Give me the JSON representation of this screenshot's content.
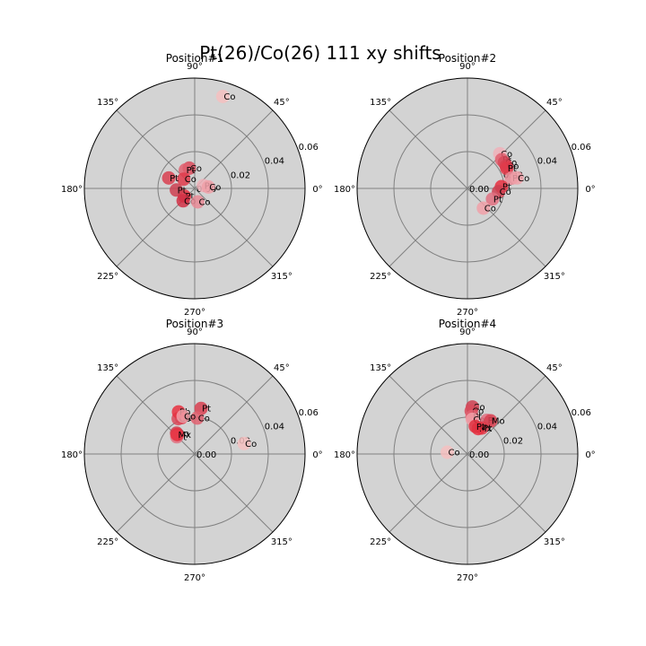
{
  "title": "Pt(26)/Co(26) 111 xy shifts",
  "chart_data": [
    {
      "type": "scatter",
      "projection": "polar",
      "title": "Position#1",
      "rlim": [
        0,
        0.06
      ],
      "r_ticks": [
        0.0,
        0.02,
        0.04,
        0.06
      ],
      "r_tick_labels": [
        "0.00",
        "0.02",
        "0.04",
        "0.06"
      ],
      "theta_ticks_deg": [
        0,
        45,
        90,
        135,
        180,
        225,
        270,
        315
      ],
      "theta_tick_labels": [
        "0°",
        "45°",
        "90°",
        "135°",
        "180°",
        "225°",
        "270°",
        "315°"
      ],
      "grid": true,
      "points": [
        {
          "label": "Co",
          "r": 0.0523,
          "theta_deg": 73,
          "color": "#f4c0c0"
        },
        {
          "label": "Co",
          "r": 0.0114,
          "theta_deg": 105,
          "color": "#d84a5a"
        },
        {
          "label": "Pt",
          "r": 0.0112,
          "theta_deg": 117,
          "color": "#e06070"
        },
        {
          "label": "Co",
          "r": 0.0078,
          "theta_deg": 140,
          "color": "#e03a4a"
        },
        {
          "label": "Pt",
          "r": 0.0152,
          "theta_deg": 158,
          "color": "#d84050"
        },
        {
          "label": "Pt",
          "r": 0.005,
          "theta_deg": 18,
          "color": "#f0b0b8"
        },
        {
          "label": "Co",
          "r": 0.0075,
          "theta_deg": 6,
          "color": "#f0a0a8"
        },
        {
          "label": "Pt",
          "r": 0.007,
          "theta_deg": 217,
          "color": "#e83040"
        },
        {
          "label": "Pt",
          "r": 0.01,
          "theta_deg": 185,
          "color": "#cc4050"
        },
        {
          "label": "Co",
          "r": 0.0092,
          "theta_deg": 227,
          "color": "#d03045"
        },
        {
          "label": "Co",
          "r": 0.0075,
          "theta_deg": 283,
          "color": "#e88a95"
        }
      ]
    },
    {
      "type": "scatter",
      "projection": "polar",
      "title": "Position#2",
      "rlim": [
        0,
        0.06
      ],
      "r_ticks": [
        0.0,
        0.02,
        0.04,
        0.06
      ],
      "r_tick_labels": [
        "0.00",
        "0.02",
        "0.04",
        "0.06"
      ],
      "theta_ticks_deg": [
        0,
        45,
        90,
        135,
        180,
        225,
        270,
        315
      ],
      "theta_tick_labels": [
        "0°",
        "45°",
        "90°",
        "135°",
        "180°",
        "225°",
        "270°",
        "315°"
      ],
      "grid": true,
      "points": [
        {
          "label": "Co",
          "r": 0.0258,
          "theta_deg": 47,
          "color": "#f0b0b8"
        },
        {
          "label": "Pt",
          "r": 0.0243,
          "theta_deg": 40,
          "color": "#e06070"
        },
        {
          "label": "Co",
          "r": 0.0245,
          "theta_deg": 35,
          "color": "#d84a5a"
        },
        {
          "label": "Co",
          "r": 0.0244,
          "theta_deg": 30,
          "color": "#d84050"
        },
        {
          "label": "Pt",
          "r": 0.024,
          "theta_deg": 27,
          "color": "#e03a4a"
        },
        {
          "label": "Pt",
          "r": 0.0245,
          "theta_deg": 13,
          "color": "#e88a95"
        },
        {
          "label": "Co",
          "r": 0.0275,
          "theta_deg": 12,
          "color": "#f0a0a8"
        },
        {
          "label": "Pt",
          "r": 0.0185,
          "theta_deg": 3,
          "color": "#e83040"
        },
        {
          "label": "Co",
          "r": 0.017,
          "theta_deg": 354,
          "color": "#cc4050"
        },
        {
          "label": "Pt",
          "r": 0.0148,
          "theta_deg": 337,
          "color": "#e07080"
        },
        {
          "label": "Co",
          "r": 0.0138,
          "theta_deg": 309,
          "color": "#f0a0a8"
        }
      ]
    },
    {
      "type": "scatter",
      "projection": "polar",
      "title": "Position#3",
      "rlim": [
        0,
        0.06
      ],
      "r_ticks": [
        0.0,
        0.02,
        0.04,
        0.06
      ],
      "r_tick_labels": [
        "0.00",
        "0.02",
        "0.04",
        "0.06"
      ],
      "theta_ticks_deg": [
        0,
        45,
        90,
        135,
        180,
        225,
        270,
        315
      ],
      "theta_tick_labels": [
        "0°",
        "45°",
        "90°",
        "135°",
        "180°",
        "225°",
        "270°",
        "315°"
      ],
      "grid": true,
      "points": [
        {
          "label": "Pt",
          "r": 0.025,
          "theta_deg": 82,
          "color": "#d84050"
        },
        {
          "label": "Co",
          "r": 0.0196,
          "theta_deg": 86,
          "color": "#e06070"
        },
        {
          "label": "Pt",
          "r": 0.021,
          "theta_deg": 110,
          "color": "#e03a4a"
        },
        {
          "label": "Co",
          "r": 0.0212,
          "theta_deg": 115,
          "color": "#d84a5a"
        },
        {
          "label": "Pb",
          "r": 0.0245,
          "theta_deg": 111,
          "color": "#e83040"
        },
        {
          "label": "Co",
          "r": 0.0215,
          "theta_deg": 107,
          "color": "#f0a0a8"
        },
        {
          "label": "Co",
          "r": 0.015,
          "theta_deg": 131,
          "color": "#cc4050"
        },
        {
          "label": "Pt",
          "r": 0.0135,
          "theta_deg": 136,
          "color": "#e07080"
        },
        {
          "label": "Mx",
          "r": 0.0142,
          "theta_deg": 132,
          "color": "#e83040"
        },
        {
          "label": "Co",
          "r": 0.0275,
          "theta_deg": 12,
          "color": "#f4c0c0"
        }
      ]
    },
    {
      "type": "scatter",
      "projection": "polar",
      "title": "Position#4",
      "rlim": [
        0,
        0.06
      ],
      "r_ticks": [
        0.0,
        0.02,
        0.04,
        0.06
      ],
      "r_tick_labels": [
        "0.00",
        "0.02",
        "0.04",
        "0.06"
      ],
      "theta_ticks_deg": [
        0,
        45,
        90,
        135,
        180,
        225,
        270,
        315
      ],
      "theta_tick_labels": [
        "0°",
        "45°",
        "90°",
        "135°",
        "180°",
        "225°",
        "270°",
        "315°"
      ],
      "grid": true,
      "points": [
        {
          "label": "Co",
          "r": 0.0257,
          "theta_deg": 84,
          "color": "#cc4050"
        },
        {
          "label": "Co",
          "r": 0.0235,
          "theta_deg": 85,
          "color": "#d84a5a"
        },
        {
          "label": "Pt",
          "r": 0.0205,
          "theta_deg": 83,
          "color": "#e06070"
        },
        {
          "label": "Co",
          "r": 0.019,
          "theta_deg": 82,
          "color": "#f0a0a8"
        },
        {
          "label": "Pt",
          "r": 0.0211,
          "theta_deg": 60,
          "color": "#e07080"
        },
        {
          "label": "Mo",
          "r": 0.022,
          "theta_deg": 55,
          "color": "#d84050"
        },
        {
          "label": "Pt",
          "r": 0.0161,
          "theta_deg": 61,
          "color": "#e03a4a"
        },
        {
          "label": "Mx",
          "r": 0.015,
          "theta_deg": 67,
          "color": "#e83040"
        },
        {
          "label": "Pt",
          "r": 0.0156,
          "theta_deg": 74,
          "color": "#e03040"
        },
        {
          "label": "Co",
          "r": 0.011,
          "theta_deg": 175,
          "color": "#f4c0c0"
        }
      ]
    }
  ]
}
